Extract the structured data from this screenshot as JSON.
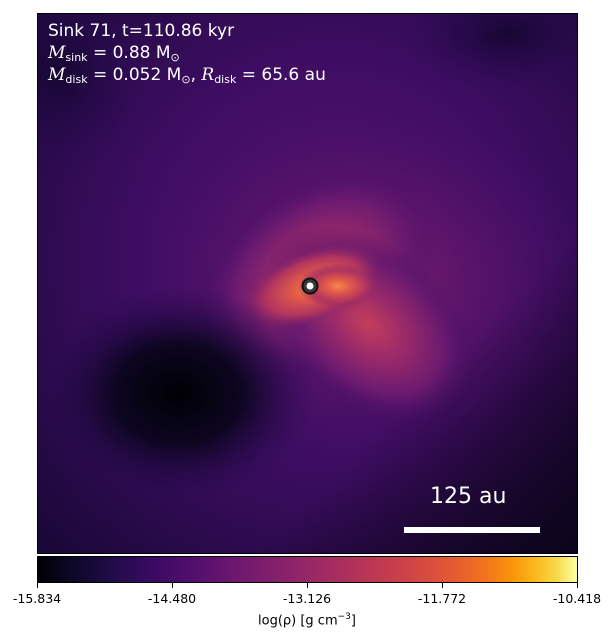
{
  "header": {
    "title": "Sink 71, t=110.86 kyr",
    "mass_symbol": "M",
    "mass_subscript": "sink",
    "mass_value": " = 0.88 M",
    "mass_unit_sub": "⊙",
    "disk_symbol": "M",
    "disk_subscript": "disk",
    "disk_value": " = 0.052 M",
    "disk_unit_sub": "⊙",
    "radius_sep": ",  ",
    "radius_symbol": "R",
    "radius_subscript": "disk",
    "radius_value": " = 65.6 au"
  },
  "scale_bar": {
    "label": "125 au"
  },
  "colorbar": {
    "colormap": "inferno",
    "ticks": [
      "-15.834",
      "-14.480",
      "-13.126",
      "-11.772",
      "-10.418"
    ],
    "label": "log(ρ) [g cm",
    "label_exp": "−3",
    "label_end": "]"
  },
  "colors": {
    "background_dark": "#2d0b59",
    "core_bright": "#f07a4a",
    "sink_marker": "#ffffff"
  }
}
